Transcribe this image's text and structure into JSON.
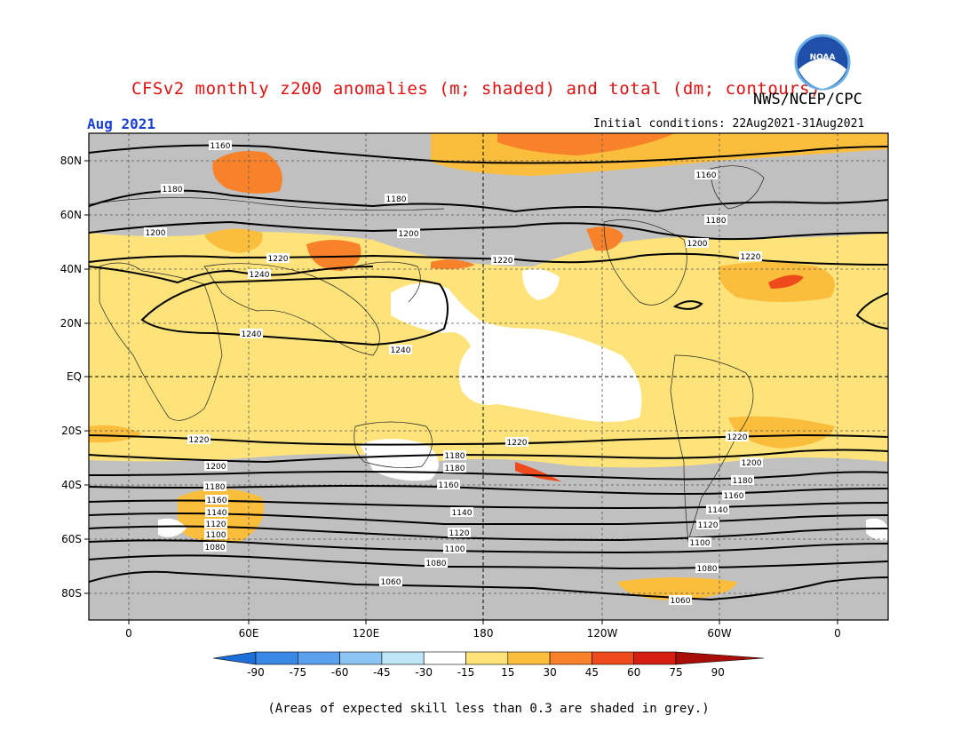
{
  "header": {
    "title": "CFSv2 monthly z200 anomalies (m; shaded) and total (dm; contours)",
    "agency": "NWS/NCEP/CPC",
    "month": "Aug 2021",
    "initial_conditions": "Initial conditions: 22Aug2021-31Aug2021",
    "logo_text": "NOAA"
  },
  "map": {
    "lat_labels": [
      "80N",
      "60N",
      "40N",
      "20N",
      "EQ",
      "20S",
      "40S",
      "60S",
      "80S"
    ],
    "lon_labels": [
      "0",
      "60E",
      "120E",
      "180",
      "120W",
      "60W",
      "0"
    ],
    "contour_levels": [
      "1060",
      "1080",
      "1100",
      "1120",
      "1140",
      "1160",
      "1180",
      "1200",
      "1220",
      "1240"
    ],
    "contour_labels": [
      "1160",
      "1180",
      "1180",
      "1160",
      "1180",
      "1200",
      "1200",
      "1200",
      "1220",
      "1220",
      "1220",
      "1240",
      "1240",
      "1240",
      "1220",
      "1220",
      "1220",
      "1200",
      "1180",
      "1200",
      "1180",
      "1160",
      "1140",
      "1120",
      "1100",
      "1080",
      "1200",
      "1180",
      "1160",
      "1140",
      "1120",
      "1100",
      "1080",
      "1060",
      "1180",
      "1160",
      "1140",
      "1120",
      "1100",
      "1080",
      "1060"
    ]
  },
  "colorbar": {
    "levels": [
      "-90",
      "-75",
      "-60",
      "-45",
      "-30",
      "-15",
      "15",
      "30",
      "45",
      "60",
      "75",
      "90"
    ],
    "colors": [
      "#1f6fd8",
      "#3a88e6",
      "#5aa0ee",
      "#8cc4f4",
      "#bfe6f6",
      "#ffffff",
      "#fde37a",
      "#fbbe3c",
      "#f7822a",
      "#ef4a1c",
      "#d41e10",
      "#a80d08"
    ]
  },
  "colors": {
    "skill_grey": "#c0c0c0",
    "title_red": "#e01010",
    "month_blue": "#1a3fd8"
  },
  "footnote": "(Areas of expected skill less than 0.3 are shaded in grey.)"
}
